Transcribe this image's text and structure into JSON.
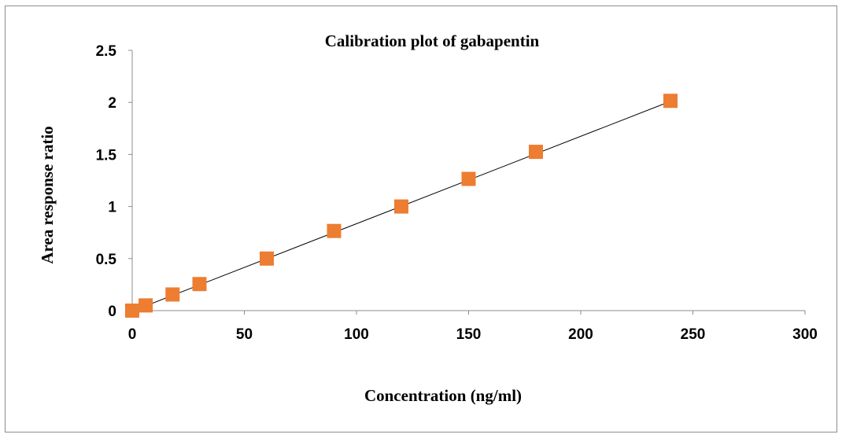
{
  "chart_data": {
    "type": "scatter",
    "title": "Calibration plot of gabapentin",
    "xlabel": "Concentration (ng/ml)",
    "ylabel": "Area response ratio",
    "xlim": [
      0,
      300
    ],
    "ylim": [
      0,
      2.5
    ],
    "xticks": [
      0,
      50,
      100,
      150,
      200,
      250,
      300
    ],
    "yticks": [
      0,
      0.5,
      1,
      1.5,
      2,
      2.5
    ],
    "xtick_labels": [
      "0",
      "50",
      "100",
      "150",
      "200",
      "250",
      "300"
    ],
    "ytick_labels": [
      "0",
      "0.5",
      "1",
      "1.5",
      "2",
      "2.5"
    ],
    "grid": false,
    "legend": "none",
    "series": [
      {
        "marker": "square",
        "color": "#ED7D31",
        "x": [
          0,
          6,
          18,
          30,
          60,
          90,
          120,
          150,
          180,
          240
        ],
        "y": [
          0,
          0.05,
          0.155,
          0.255,
          0.5,
          0.765,
          1.0,
          1.265,
          1.525,
          2.015
        ]
      }
    ],
    "trendline": {
      "type": "linear",
      "color": "#000000",
      "x": [
        0,
        240
      ],
      "y": [
        -0.005,
        2.01
      ]
    }
  }
}
